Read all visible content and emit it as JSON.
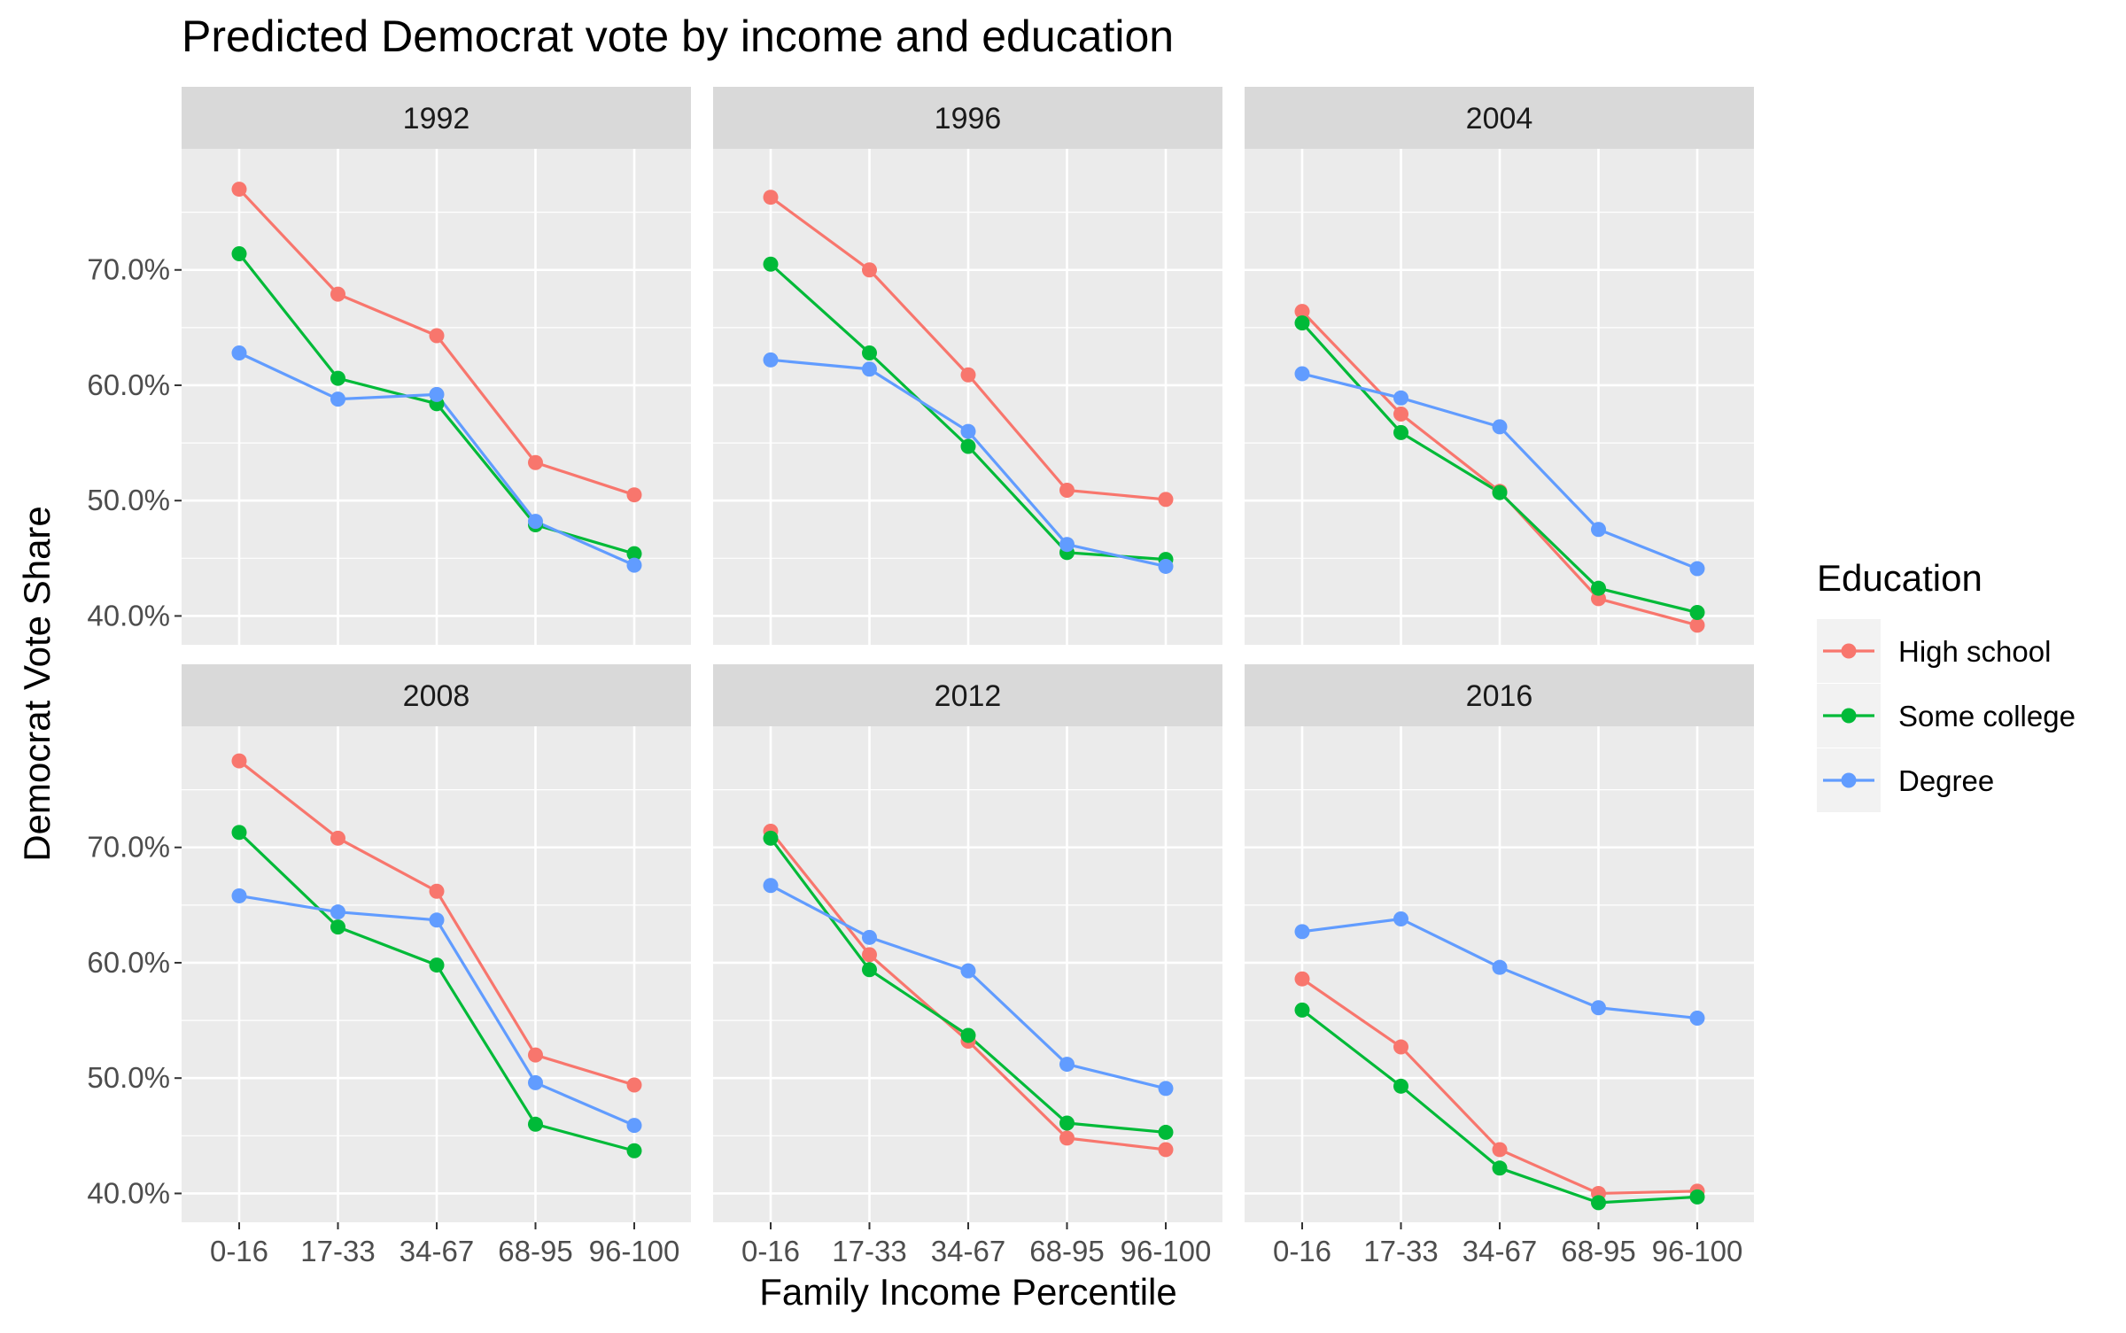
{
  "chart_data": {
    "type": "line",
    "title": "Predicted Democrat vote by income and education",
    "xlabel": "Family Income Percentile",
    "ylabel": "Democrat Vote Share",
    "categories": [
      "0-16",
      "17-33",
      "34-67",
      "68-95",
      "96-100"
    ],
    "y_ticks": [
      40,
      50,
      60,
      70
    ],
    "y_tick_labels": [
      "40.0%",
      "50.0%",
      "60.0%",
      "70.0%"
    ],
    "ylim": [
      37.5,
      80.5
    ],
    "grid": true,
    "legend": {
      "title": "Education",
      "position": "right",
      "entries": [
        "High school",
        "Some college",
        "Degree"
      ]
    },
    "colors": {
      "High school": "#F8766D",
      "Some college": "#00BA38",
      "Degree": "#619CFF",
      "panel_bg": "#EBEBEB",
      "strip_bg": "#D9D9D9",
      "grid": "#FFFFFF"
    },
    "facets": [
      {
        "label": "1992",
        "series": [
          {
            "name": "High school",
            "values": [
              77.0,
              67.9,
              64.3,
              53.3,
              50.5
            ]
          },
          {
            "name": "Some college",
            "values": [
              71.4,
              60.6,
              58.4,
              47.9,
              45.4
            ]
          },
          {
            "name": "Degree",
            "values": [
              62.8,
              58.8,
              59.2,
              48.2,
              44.4
            ]
          }
        ]
      },
      {
        "label": "1996",
        "series": [
          {
            "name": "High school",
            "values": [
              76.3,
              70.0,
              60.9,
              50.9,
              50.1
            ]
          },
          {
            "name": "Some college",
            "values": [
              70.5,
              62.8,
              54.7,
              45.5,
              44.9
            ]
          },
          {
            "name": "Degree",
            "values": [
              62.2,
              61.4,
              56.0,
              46.2,
              44.3
            ]
          }
        ]
      },
      {
        "label": "2004",
        "series": [
          {
            "name": "High school",
            "values": [
              66.4,
              57.5,
              50.8,
              41.5,
              39.2
            ]
          },
          {
            "name": "Some college",
            "values": [
              65.4,
              55.9,
              50.7,
              42.4,
              40.3
            ]
          },
          {
            "name": "Degree",
            "values": [
              61.0,
              58.9,
              56.4,
              47.5,
              44.1
            ]
          }
        ]
      },
      {
        "label": "2008",
        "series": [
          {
            "name": "High school",
            "values": [
              77.5,
              70.8,
              66.2,
              52.0,
              49.4
            ]
          },
          {
            "name": "Some college",
            "values": [
              71.3,
              63.1,
              59.8,
              46.0,
              43.7
            ]
          },
          {
            "name": "Degree",
            "values": [
              65.8,
              64.4,
              63.7,
              49.6,
              45.9
            ]
          }
        ]
      },
      {
        "label": "2012",
        "series": [
          {
            "name": "High school",
            "values": [
              71.4,
              60.7,
              53.2,
              44.8,
              43.8
            ]
          },
          {
            "name": "Some college",
            "values": [
              70.8,
              59.4,
              53.7,
              46.1,
              45.3
            ]
          },
          {
            "name": "Degree",
            "values": [
              66.7,
              62.2,
              59.3,
              51.2,
              49.1
            ]
          }
        ]
      },
      {
        "label": "2016",
        "series": [
          {
            "name": "High school",
            "values": [
              58.6,
              52.7,
              43.8,
              40.0,
              40.2
            ]
          },
          {
            "name": "Some college",
            "values": [
              55.9,
              49.3,
              42.2,
              39.2,
              39.7
            ]
          },
          {
            "name": "Degree",
            "values": [
              62.7,
              63.8,
              59.6,
              56.1,
              55.2
            ]
          }
        ]
      }
    ]
  }
}
